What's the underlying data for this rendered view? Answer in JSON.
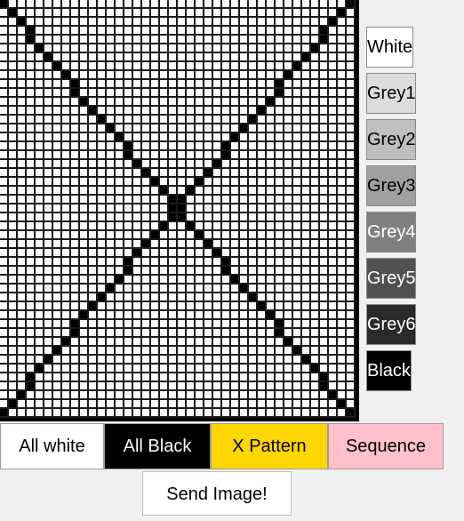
{
  "canvas": {
    "columns": 40,
    "rows": 47,
    "pattern": "X Pattern"
  },
  "palette": [
    {
      "label": "White",
      "bg": "#ffffff",
      "fg": "#000000"
    },
    {
      "label": "Grey1",
      "bg": "#dcdcdc",
      "fg": "#000000"
    },
    {
      "label": "Grey2",
      "bg": "#bfbfbf",
      "fg": "#000000"
    },
    {
      "label": "Grey3",
      "bg": "#a0a0a0",
      "fg": "#000000"
    },
    {
      "label": "Grey4",
      "bg": "#808080",
      "fg": "#ffffff"
    },
    {
      "label": "Grey5",
      "bg": "#505050",
      "fg": "#ffffff"
    },
    {
      "label": "Grey6",
      "bg": "#2a2a2a",
      "fg": "#ffffff"
    },
    {
      "label": "Black",
      "bg": "#000000",
      "fg": "#ffffff"
    }
  ],
  "presets": [
    {
      "label": "All white",
      "bg": "#ffffff",
      "fg": "#000000"
    },
    {
      "label": "All Black",
      "bg": "#000000",
      "fg": "#ffffff"
    },
    {
      "label": "X Pattern",
      "bg": "#ffd700",
      "fg": "#000000"
    },
    {
      "label": "Sequence",
      "bg": "#ffc0cb",
      "fg": "#000000"
    }
  ],
  "send_label": "Send Image!"
}
